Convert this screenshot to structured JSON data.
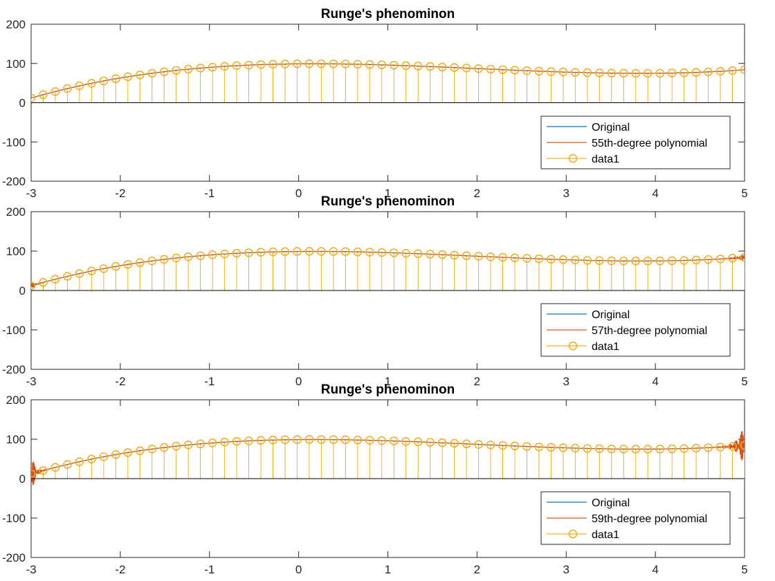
{
  "chart_data": [
    {
      "type": "line",
      "title": "Runge's phenominon",
      "xlim": [
        -3,
        5
      ],
      "ylim": [
        -200,
        200
      ],
      "xticks": [
        "-3",
        "-2",
        "-1",
        "0",
        "1",
        "2",
        "3",
        "4",
        "5"
      ],
      "yticks": [
        "200",
        "100",
        "0",
        "-100",
        "-200"
      ],
      "grid": false,
      "legend_position": "bottom-right",
      "legend": [
        "Original",
        "55th-degree polynomial",
        "data1"
      ],
      "degree": 55,
      "series": [
        {
          "name": "Original",
          "style": "line",
          "color": "#0072BD",
          "function": "x^3 - 6x^2 + 2x + 99"
        },
        {
          "name": "55th-degree polynomial",
          "style": "line",
          "color": "#D95319",
          "edge_oscillation": 0
        },
        {
          "name": "data1",
          "style": "stem",
          "marker": "circle",
          "color": "#EDB120",
          "x_start": -3,
          "x_step": 0.13559322,
          "count": 60
        }
      ]
    },
    {
      "type": "line",
      "title": "Runge's phenominon",
      "xlim": [
        -3,
        5
      ],
      "ylim": [
        -200,
        200
      ],
      "xticks": [
        "-3",
        "-2",
        "-1",
        "0",
        "1",
        "2",
        "3",
        "4",
        "5"
      ],
      "yticks": [
        "200",
        "100",
        "0",
        "-100",
        "-200"
      ],
      "grid": false,
      "legend_position": "bottom-right",
      "legend": [
        "Original",
        "57th-degree polynomial",
        "data1"
      ],
      "degree": 57,
      "series": [
        {
          "name": "Original",
          "style": "line",
          "color": "#0072BD",
          "function": "x^3 - 6x^2 + 2x + 99"
        },
        {
          "name": "57th-degree polynomial",
          "style": "line",
          "color": "#D95319",
          "edge_oscillation": 12
        },
        {
          "name": "data1",
          "style": "stem",
          "marker": "circle",
          "color": "#EDB120",
          "x_start": -3,
          "x_step": 0.13559322,
          "count": 60
        }
      ]
    },
    {
      "type": "line",
      "title": "Runge's phenominon",
      "xlim": [
        -3,
        5
      ],
      "ylim": [
        -200,
        200
      ],
      "xticks": [
        "-3",
        "-2",
        "-1",
        "0",
        "1",
        "2",
        "3",
        "4",
        "5"
      ],
      "yticks": [
        "200",
        "100",
        "0",
        "-100",
        "-200"
      ],
      "grid": false,
      "legend_position": "bottom-right",
      "legend": [
        "Original",
        "59th-degree polynomial",
        "data1"
      ],
      "degree": 59,
      "series": [
        {
          "name": "Original",
          "style": "line",
          "color": "#0072BD",
          "function": "x^3 - 6x^2 + 2x + 99"
        },
        {
          "name": "59th-degree polynomial",
          "style": "line",
          "color": "#D95319",
          "edge_oscillation": 60
        },
        {
          "name": "data1",
          "style": "stem",
          "marker": "circle",
          "color": "#EDB120",
          "x_start": -3,
          "x_step": 0.13559322,
          "count": 60
        }
      ]
    }
  ]
}
